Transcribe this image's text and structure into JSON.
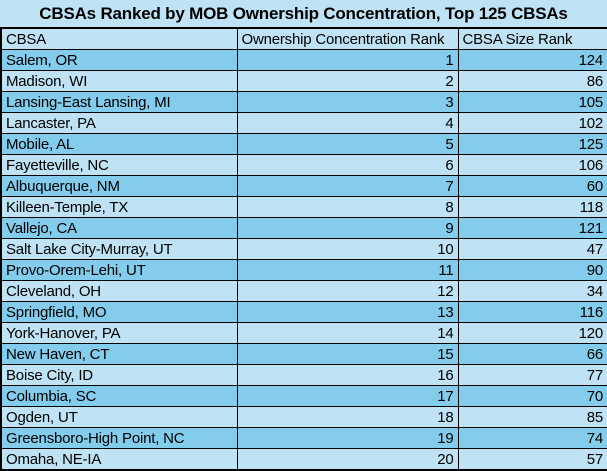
{
  "chart_data": {
    "type": "table",
    "title": "CBSAs Ranked by MOB Ownership Concentration, Top 125 CBSAs",
    "columns": [
      "CBSA",
      "Ownership Concentration Rank",
      "CBSA Size Rank"
    ],
    "rows": [
      [
        "Salem, OR",
        "1",
        "124"
      ],
      [
        "Madison, WI",
        "2",
        "86"
      ],
      [
        "Lansing-East Lansing, MI",
        "3",
        "105"
      ],
      [
        "Lancaster, PA",
        "4",
        "102"
      ],
      [
        "Mobile, AL",
        "5",
        "125"
      ],
      [
        "Fayetteville, NC",
        "6",
        "106"
      ],
      [
        "Albuquerque, NM",
        "7",
        "60"
      ],
      [
        "Killeen-Temple, TX",
        "8",
        "118"
      ],
      [
        "Vallejo, CA",
        "9",
        "121"
      ],
      [
        "Salt Lake City-Murray, UT",
        "10",
        "47"
      ],
      [
        "Provo-Orem-Lehi, UT",
        "11",
        "90"
      ],
      [
        "Cleveland, OH",
        "12",
        "34"
      ],
      [
        "Springfield, MO",
        "13",
        "116"
      ],
      [
        "York-Hanover, PA",
        "14",
        "120"
      ],
      [
        "New Haven, CT",
        "15",
        "66"
      ],
      [
        "Boise City, ID",
        "16",
        "77"
      ],
      [
        "Columbia, SC",
        "17",
        "70"
      ],
      [
        "Ogden, UT",
        "18",
        "85"
      ],
      [
        "Greensboro-High Point, NC",
        "19",
        "74"
      ],
      [
        "Omaha, NE-IA",
        "20",
        "57"
      ]
    ],
    "legend": null,
    "grid": true
  },
  "colors": {
    "row_dark": "#84CCEC",
    "row_light": "#BFE3F4",
    "grid": "#000000",
    "bg": "#BFE3F4",
    "text": "#000000"
  }
}
